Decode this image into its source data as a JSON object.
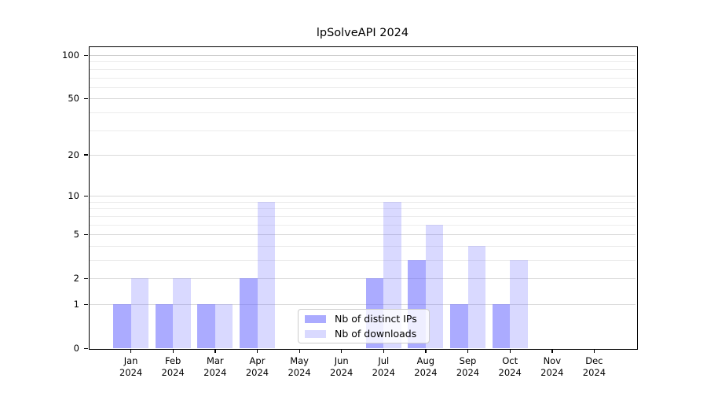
{
  "chart_data": {
    "type": "bar",
    "title": "lpSolveAPI 2024",
    "categories": [
      "Jan 2024",
      "Feb 2024",
      "Mar 2024",
      "Apr 2024",
      "May 2024",
      "Jun 2024",
      "Jul 2024",
      "Aug 2024",
      "Sep 2024",
      "Oct 2024",
      "Nov 2024",
      "Dec 2024"
    ],
    "series": [
      {
        "name": "Nb of distinct IPs",
        "values": [
          1,
          1,
          1,
          2,
          0,
          0,
          2,
          3,
          1,
          1,
          0,
          0
        ],
        "color": "rgba(102,102,255,0.55)",
        "legend_color": "#ababff"
      },
      {
        "name": "Nb of downloads",
        "values": [
          2,
          2,
          1,
          9,
          0,
          0,
          9,
          6,
          4,
          3,
          0,
          0
        ],
        "color": "rgba(102,102,255,0.25)",
        "legend_color": "#d9d9ff"
      }
    ],
    "xlabel": "",
    "ylabel": "",
    "yscale": "log1p",
    "yticks": [
      0,
      1,
      2,
      5,
      10,
      20,
      50,
      100
    ],
    "minor_gridline_values": [
      3,
      4,
      6,
      7,
      8,
      9,
      30,
      40,
      60,
      70,
      80,
      90
    ],
    "ylim": [
      0,
      117
    ],
    "grid": true,
    "legend_position": "lower center",
    "colors": {
      "background": "#ffffff",
      "axis": "#000000",
      "major_grid": "#d9d9d9",
      "top_grid": "#c9c9c9",
      "minor_grid": "#ececec",
      "text": "#000000"
    }
  }
}
